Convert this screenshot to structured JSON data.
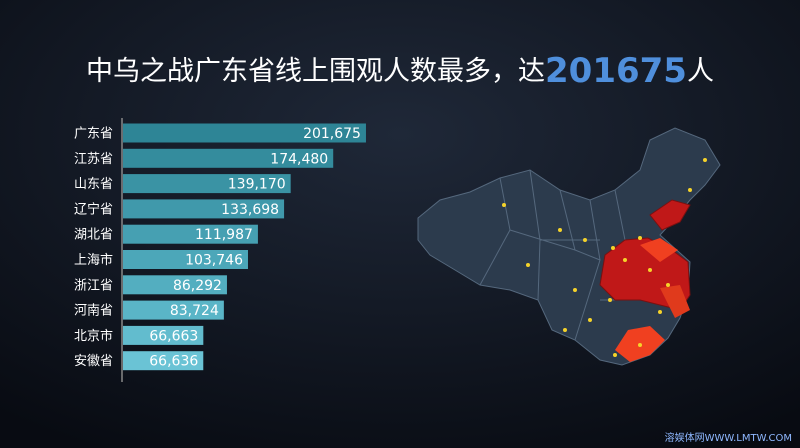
{
  "chart_data": {
    "type": "bar",
    "orientation": "horizontal",
    "title": {
      "prefix": "中乌之战广东省线上围观人数最多，达",
      "highlight": "201675",
      "suffix": "人"
    },
    "categories": [
      "广东省",
      "江苏省",
      "山东省",
      "辽宁省",
      "湖北省",
      "上海市",
      "浙江省",
      "河南省",
      "北京市",
      "安徽省"
    ],
    "values": [
      201675,
      174480,
      139170,
      133698,
      111987,
      103746,
      86292,
      83724,
      66663,
      66636
    ],
    "value_labels": [
      "201,675",
      "174,480",
      "139,170",
      "133,698",
      "111,987",
      "103,746",
      "86,292",
      "83,724",
      "66,663",
      "66,636"
    ],
    "colors": [
      "#2e8596",
      "#348c9d",
      "#3a93a4",
      "#4099ab",
      "#46a0b2",
      "#4ca7b9",
      "#53aec0",
      "#5ab5c7",
      "#62bcce",
      "#6ac3d5"
    ],
    "xlim": [
      0,
      210000
    ],
    "watermark": "溶娱体网WWW.LMTW.COM"
  }
}
